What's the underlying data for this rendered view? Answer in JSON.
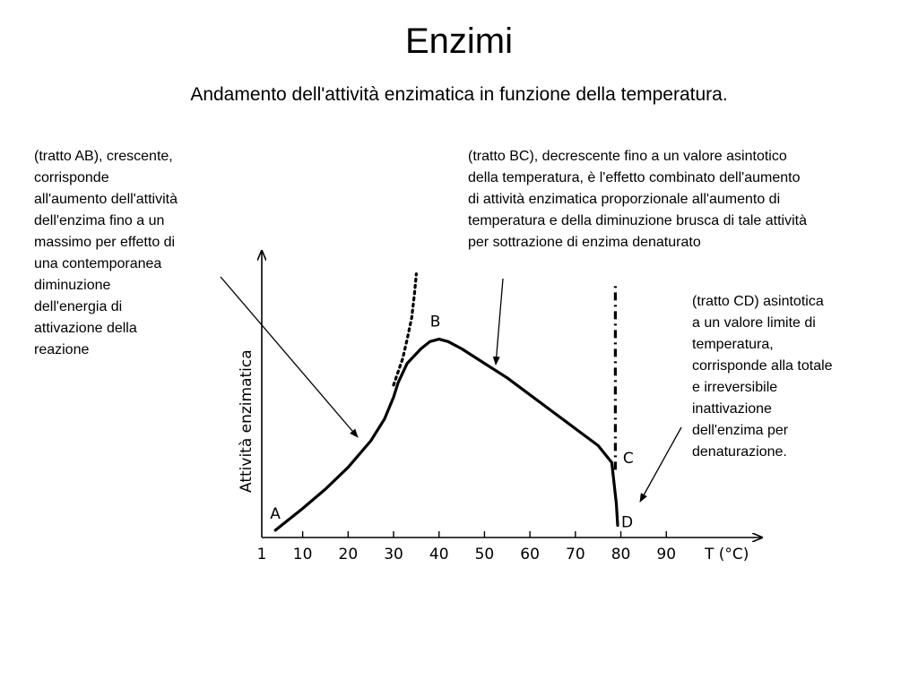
{
  "slide": {
    "title": "Enzimi",
    "subtitle": "Andamento  dell'attività enzimatica in funzione della temperatura."
  },
  "notes": {
    "ab": "(tratto AB), crescente,\ncorrisponde\nall'aumento dell'attività\ndell'enzima fino a un\nmassimo per effetto di\nuna contemporanea\ndiminuzione\ndell'energia di\nattivazione della\nreazione",
    "bc": "(tratto BC), decrescente fino a un valore asintotico\ndella temperatura, è l'effetto combinato dell'aumento\ndi attività enzimatica proporzionale all'aumento di\ntemperatura e della diminuzione brusca di tale attività\nper sottrazione di enzima denaturato",
    "cd": "(tratto CD) asintotica\na un valore limite di\ntemperatura,\ncorrisponde alla totale\ne irreversibile\ninattivazione\ndell'enzima per\ndenaturazione."
  },
  "chart_data": {
    "type": "line",
    "title": "",
    "xlabel": "T (°C)",
    "ylabel": "Attività enzimatica",
    "xticks": [
      1,
      10,
      20,
      30,
      40,
      50,
      60,
      70,
      80,
      90
    ],
    "xtick_labels": [
      "1",
      "10",
      "20",
      "30",
      "40",
      "50",
      "60",
      "70",
      "80",
      "90"
    ],
    "xlim": [
      1,
      100
    ],
    "ylim": [
      0,
      100
    ],
    "y_tick_labels_shown": false,
    "grid": false,
    "series": [
      {
        "style": "solid",
        "x": [
          4,
          10,
          15,
          20,
          25,
          28,
          30,
          31,
          33,
          36,
          38,
          40,
          42,
          45,
          50,
          55,
          60,
          65,
          70,
          75,
          78,
          79,
          79.3
        ],
        "y": [
          3,
          12,
          20,
          29,
          40,
          49,
          58,
          64,
          72,
          78,
          81,
          82,
          81,
          78,
          72,
          66,
          59,
          52,
          45,
          38,
          31,
          14,
          5
        ]
      },
      {
        "style": "dotted",
        "x": [
          30,
          32,
          33,
          34,
          34.6,
          35
        ],
        "y": [
          63,
          74,
          82,
          91,
          101,
          109
        ]
      },
      {
        "style": "dash-dot",
        "x": [
          78.8,
          78.8
        ],
        "y": [
          28,
          104
        ]
      }
    ],
    "points": [
      {
        "label": "A",
        "x": 4,
        "y": 3
      },
      {
        "label": "B",
        "x": 40,
        "y": 82
      },
      {
        "label": "C",
        "x": 78.5,
        "y": 30
      },
      {
        "label": "D",
        "x": 79.3,
        "y": 5
      }
    ]
  }
}
